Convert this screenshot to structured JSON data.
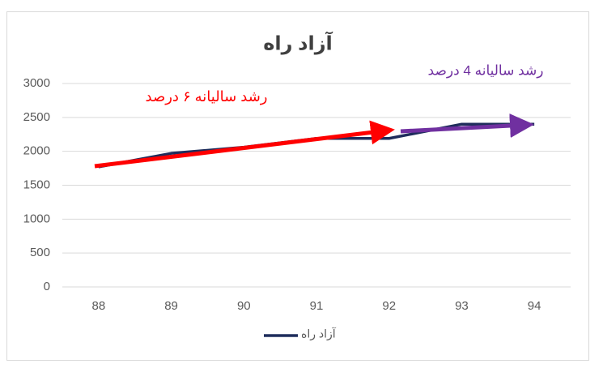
{
  "chart_data": {
    "type": "line",
    "title": "آزاد راه",
    "categories": [
      "88",
      "89",
      "90",
      "91",
      "92",
      "93",
      "94"
    ],
    "series": [
      {
        "name": "آزاد راه",
        "color": "#1f2d5c",
        "values": [
          1770,
          1970,
          2060,
          2190,
          2190,
          2400,
          2400
        ]
      }
    ],
    "ylim": [
      0,
      3000
    ],
    "yticks": [
      0,
      500,
      1000,
      1500,
      2000,
      2500,
      3000
    ],
    "grid": true,
    "legend": "bottom",
    "annotations": [
      "رشد سالیانه ۶ درصد",
      "رشد سالیانه 4 درصد"
    ]
  }
}
